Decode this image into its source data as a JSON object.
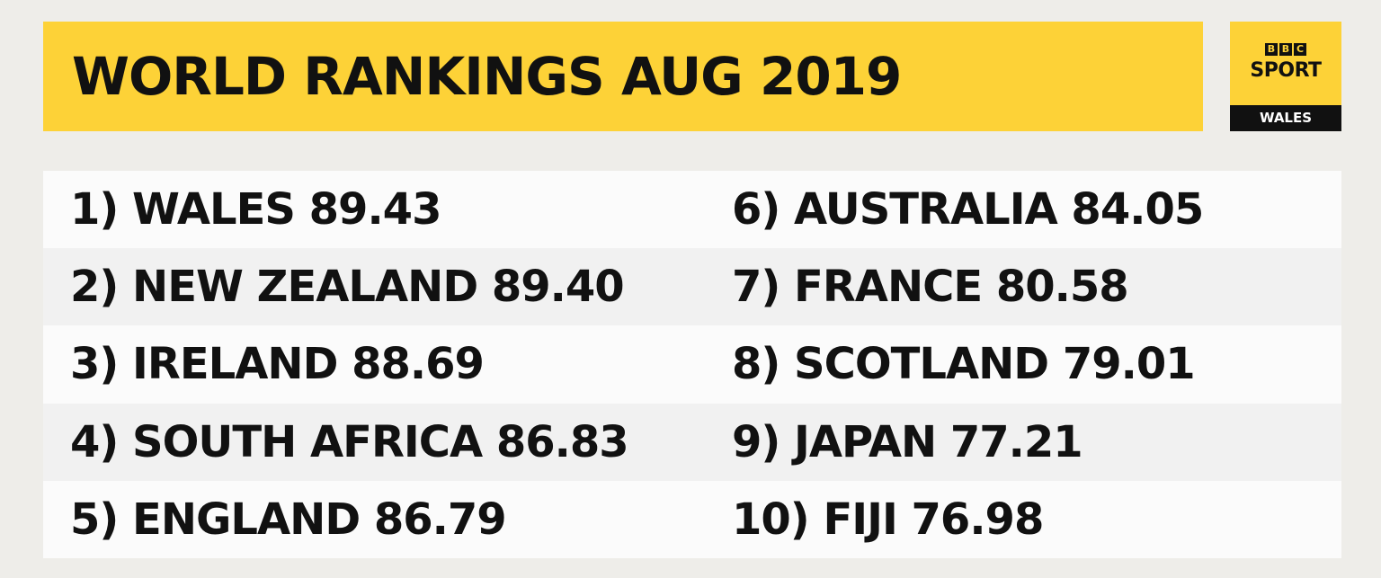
{
  "title": "WORLD RANKINGS AUG 2019",
  "logo": {
    "bbc_letters": [
      "B",
      "B",
      "C"
    ],
    "brand": "SPORT",
    "region": "WALES"
  },
  "rankings": [
    {
      "text": "1) WALES 89.43",
      "rank": 1,
      "team": "WALES",
      "points": 89.43
    },
    {
      "text": "2) NEW ZEALAND 89.40",
      "rank": 2,
      "team": "NEW ZEALAND",
      "points": 89.4
    },
    {
      "text": "3) IRELAND 88.69",
      "rank": 3,
      "team": "IRELAND",
      "points": 88.69
    },
    {
      "text": "4) SOUTH AFRICA 86.83",
      "rank": 4,
      "team": "SOUTH AFRICA",
      "points": 86.83
    },
    {
      "text": "5) ENGLAND 86.79",
      "rank": 5,
      "team": "ENGLAND",
      "points": 86.79
    },
    {
      "text": "6) AUSTRALIA 84.05",
      "rank": 6,
      "team": "AUSTRALIA",
      "points": 84.05
    },
    {
      "text": "7) FRANCE 80.58",
      "rank": 7,
      "team": "FRANCE",
      "points": 80.58
    },
    {
      "text": "8) SCOTLAND 79.01",
      "rank": 8,
      "team": "SCOTLAND",
      "points": 79.01
    },
    {
      "text": "9) JAPAN 77.21",
      "rank": 9,
      "team": "JAPAN",
      "points": 77.21
    },
    {
      "text": "10) FIJI 76.98",
      "rank": 10,
      "team": "FIJI",
      "points": 76.98
    }
  ],
  "colors": {
    "background": "#eeede9",
    "accent_yellow": "#fdd237",
    "text": "#111111",
    "row_light": "#fbfbfb",
    "row_dark": "#f1f1f1"
  }
}
